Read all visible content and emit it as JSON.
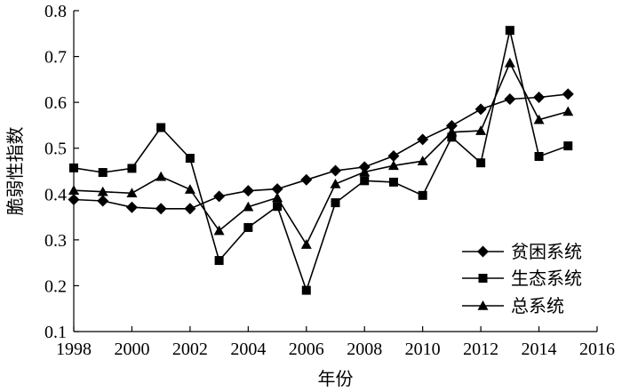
{
  "chart_data": {
    "type": "line",
    "title": "",
    "xlabel": "年份",
    "ylabel": "脆弱性指数",
    "xlim": [
      1998,
      2016
    ],
    "ylim": [
      0.1,
      0.8
    ],
    "x_ticks": [
      1998,
      2000,
      2002,
      2004,
      2006,
      2008,
      2010,
      2012,
      2014,
      2016
    ],
    "y_ticks": [
      0.1,
      0.2,
      0.3,
      0.4,
      0.5,
      0.6,
      0.7,
      0.8
    ],
    "y_tick_labels": [
      "0.1",
      "0.2",
      "0.3",
      "0.4",
      "0.5",
      "0.6",
      "0.7",
      "0.8"
    ],
    "grid": false,
    "legend_position": "bottom-right",
    "x": [
      1998,
      1999,
      2000,
      2001,
      2002,
      2003,
      2004,
      2005,
      2006,
      2007,
      2008,
      2009,
      2010,
      2011,
      2012,
      2013,
      2014,
      2015
    ],
    "series": [
      {
        "name": "贫困系统",
        "marker": "diamond",
        "values": [
          0.388,
          0.385,
          0.371,
          0.368,
          0.368,
          0.395,
          0.407,
          0.411,
          0.431,
          0.451,
          0.459,
          0.483,
          0.519,
          0.549,
          0.585,
          0.607,
          0.611,
          0.618
        ]
      },
      {
        "name": "生态系统",
        "marker": "square",
        "values": [
          0.457,
          0.447,
          0.456,
          0.545,
          0.478,
          0.255,
          0.327,
          0.373,
          0.19,
          0.381,
          0.429,
          0.426,
          0.397,
          0.524,
          0.468,
          0.757,
          0.482,
          0.505
        ]
      },
      {
        "name": "总系统",
        "marker": "triangle",
        "values": [
          0.408,
          0.405,
          0.402,
          0.438,
          0.41,
          0.32,
          0.372,
          0.392,
          0.29,
          0.422,
          0.448,
          0.462,
          0.472,
          0.535,
          0.538,
          0.686,
          0.562,
          0.58
        ]
      }
    ]
  }
}
